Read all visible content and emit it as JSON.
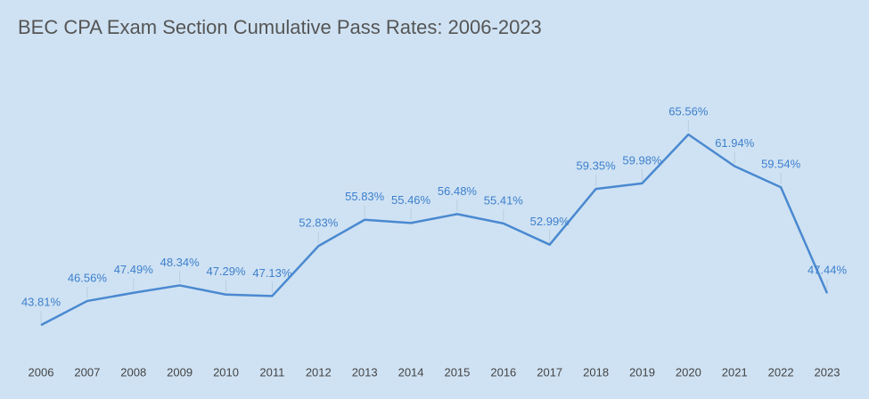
{
  "chart_data": {
    "type": "line",
    "title": "BEC CPA Exam Section Cumulative Pass Rates: 2006-2023",
    "categories": [
      "2006",
      "2007",
      "2008",
      "2009",
      "2010",
      "2011",
      "2012",
      "2013",
      "2014",
      "2015",
      "2016",
      "2017",
      "2018",
      "2019",
      "2020",
      "2021",
      "2022",
      "2023"
    ],
    "values": [
      43.81,
      46.56,
      47.49,
      48.34,
      47.29,
      47.13,
      52.83,
      55.83,
      55.46,
      56.48,
      55.41,
      52.99,
      59.35,
      59.98,
      65.56,
      61.94,
      59.54,
      47.44
    ],
    "value_labels": [
      "43.81%",
      "46.56%",
      "47.49%",
      "48.34%",
      "47.29%",
      "47.13%",
      "52.83%",
      "55.83%",
      "55.46%",
      "56.48%",
      "55.41%",
      "52.99%",
      "59.35%",
      "59.98%",
      "65.56%",
      "61.94%",
      "59.54%",
      "47.44%"
    ],
    "color": "#4a89d0"
  }
}
